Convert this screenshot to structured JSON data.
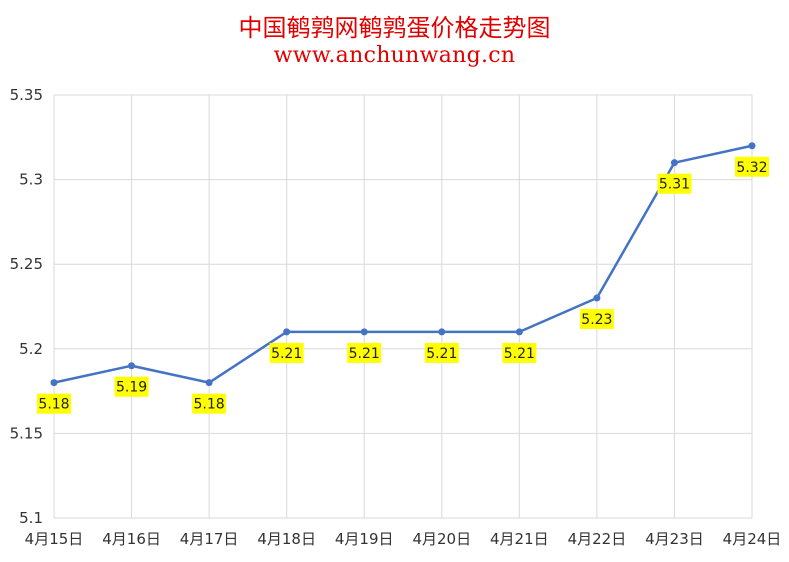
{
  "chart_data": {
    "type": "line",
    "title": "中国鹌鹑网鹌鹑蛋价格走势图",
    "subtitle": "www.anchunwang.cn",
    "xlabel": "",
    "ylabel": "",
    "categories": [
      "4月15日",
      "4月16日",
      "4月17日",
      "4月18日",
      "4月19日",
      "4月20日",
      "4月21日",
      "4月22日",
      "4月23日",
      "4月24日"
    ],
    "series": [
      {
        "values": [
          5.18,
          5.19,
          5.18,
          5.21,
          5.21,
          5.21,
          5.21,
          5.23,
          5.31,
          5.32
        ]
      }
    ],
    "data_labels": [
      "5.18",
      "5.19",
      "5.18",
      "5.21",
      "5.21",
      "5.21",
      "5.21",
      "5.23",
      "5.31",
      "5.32"
    ],
    "ylim": [
      5.1,
      5.35
    ],
    "yticks": [
      "5.1",
      "5.15",
      "5.2",
      "5.25",
      "5.3",
      "5.35"
    ],
    "grid": true,
    "legend": "none",
    "colors": {
      "line": "#4472c4",
      "label_bg": "#ffff00",
      "title": "#e00000",
      "grid": "#d9d9d9"
    }
  }
}
